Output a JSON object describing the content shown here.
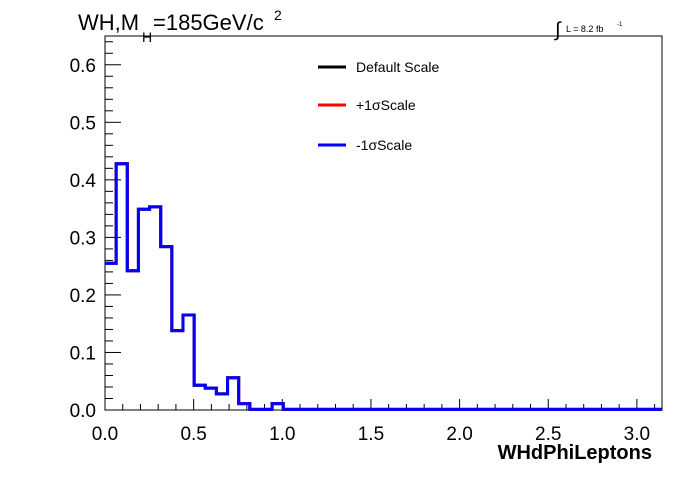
{
  "chart_data": {
    "type": "line",
    "title_main": "WH,M",
    "title_sub": "H",
    "title_mass": "=185GeV/c",
    "title_sup": "2",
    "lumi_integral": "∫",
    "lumi_label": "L = 8.2 fb",
    "lumi_sup": "-1",
    "xlabel": "WHdPhiLeptons",
    "ylabel": "",
    "xlim": [
      0,
      3.1416
    ],
    "ylim": [
      0,
      0.65
    ],
    "x_ticks": [
      "0.0",
      "0.5",
      "1.0",
      "1.5",
      "2.0",
      "2.5",
      "3.0"
    ],
    "x_tick_values": [
      0,
      0.5,
      1.0,
      1.5,
      2.0,
      2.5,
      3.0
    ],
    "y_ticks": [
      "0.0",
      "0.1",
      "0.2",
      "0.3",
      "0.4",
      "0.5",
      "0.6"
    ],
    "y_tick_values": [
      0,
      0.1,
      0.2,
      0.3,
      0.4,
      0.5,
      0.6
    ],
    "bin_edges": [
      0,
      0.0628,
      0.1257,
      0.1885,
      0.2513,
      0.3142,
      0.377,
      0.4398,
      0.5027,
      0.5655,
      0.6283,
      0.6912,
      0.754,
      0.8168,
      0.8796,
      0.9425,
      1.0053,
      1.0681,
      1.131,
      1.1938,
      1.2566,
      1.3195,
      1.3823,
      1.4451,
      1.508,
      1.5708,
      1.6336,
      1.6965,
      1.7593,
      1.8221,
      1.885,
      1.9478,
      2.0106,
      2.0735,
      2.1363,
      2.1991,
      2.2619,
      2.3248,
      2.3876,
      2.4504,
      2.5133,
      2.5761,
      2.6389,
      2.7018,
      2.7646,
      2.8274,
      2.8903,
      2.9531,
      3.0159,
      3.0788,
      3.1416
    ],
    "series": [
      {
        "name": "Default Scale",
        "color": "#000000",
        "values": [
          0.255,
          0.428,
          0.242,
          0.349,
          0.353,
          0.284,
          0.138,
          0.165,
          0.043,
          0.038,
          0.028,
          0.056,
          0.011,
          0.001,
          0.001,
          0.011,
          0.001,
          0.001,
          0.001,
          0.001,
          0.001,
          0.001,
          0.001,
          0.001,
          0.001,
          0.001,
          0.001,
          0.001,
          0.001,
          0.001,
          0.001,
          0.001,
          0.001,
          0.001,
          0.001,
          0.001,
          0.001,
          0.001,
          0.001,
          0.001,
          0.001,
          0.001,
          0.001,
          0.001,
          0.001,
          0.001,
          0.001,
          0.001,
          0.001,
          0.001
        ]
      },
      {
        "name": "+1σScale",
        "color": "#ff0000",
        "values": [
          0.255,
          0.428,
          0.242,
          0.349,
          0.353,
          0.284,
          0.138,
          0.165,
          0.043,
          0.038,
          0.028,
          0.056,
          0.011,
          0.001,
          0.001,
          0.011,
          0.001,
          0.001,
          0.001,
          0.001,
          0.001,
          0.001,
          0.001,
          0.001,
          0.001,
          0.001,
          0.001,
          0.001,
          0.001,
          0.001,
          0.001,
          0.001,
          0.001,
          0.001,
          0.001,
          0.001,
          0.001,
          0.001,
          0.001,
          0.001,
          0.001,
          0.001,
          0.001,
          0.001,
          0.001,
          0.001,
          0.001,
          0.001,
          0.001,
          0.001
        ]
      },
      {
        "name": "-1σScale",
        "color": "#0000ff",
        "values": [
          0.255,
          0.428,
          0.242,
          0.349,
          0.353,
          0.284,
          0.138,
          0.165,
          0.043,
          0.038,
          0.028,
          0.056,
          0.011,
          0.001,
          0.001,
          0.011,
          0.001,
          0.001,
          0.001,
          0.001,
          0.001,
          0.001,
          0.001,
          0.001,
          0.001,
          0.001,
          0.001,
          0.001,
          0.001,
          0.001,
          0.001,
          0.001,
          0.001,
          0.001,
          0.001,
          0.001,
          0.001,
          0.001,
          0.001,
          0.001,
          0.001,
          0.001,
          0.001,
          0.001,
          0.001,
          0.001,
          0.001,
          0.001,
          0.001,
          0.001
        ]
      }
    ],
    "legend_position": "top-center",
    "grid": false
  }
}
